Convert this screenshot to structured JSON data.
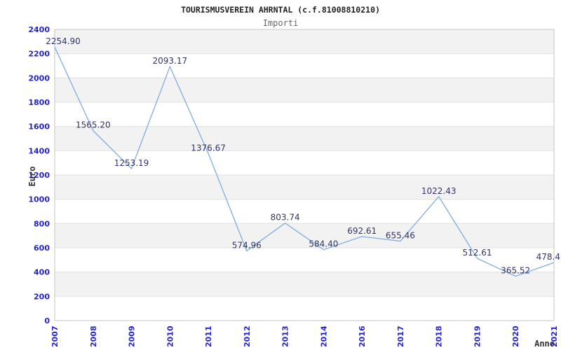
{
  "chart_data": {
    "type": "line",
    "title": "TOURISMUSVEREIN AHRNTAL (c.f.81008810210)",
    "subtitle": "Importi",
    "xlabel": "Anno",
    "ylabel": "Euro",
    "categories": [
      "2007",
      "2008",
      "2009",
      "2010",
      "2011",
      "2012",
      "2013",
      "2014",
      "2016",
      "2017",
      "2018",
      "2019",
      "2020",
      "2021"
    ],
    "values": [
      2254.9,
      1565.2,
      1253.19,
      2093.17,
      1376.67,
      574.96,
      803.74,
      584.4,
      692.61,
      655.46,
      1022.43,
      512.61,
      365.52,
      478.4
    ],
    "point_labels": [
      "2254.90",
      "1565.20",
      "1253.19",
      "2093.17",
      "1376.67",
      "574.96",
      "803.74",
      "584.40",
      "692.61",
      "655.46",
      "1022.43",
      "512.61",
      "365.52",
      "478.4"
    ],
    "ylim": [
      0,
      2400
    ],
    "ytick_step": 200,
    "ytick_labels": [
      "0",
      "200",
      "400",
      "600",
      "800",
      "1000",
      "1200",
      "1400",
      "1600",
      "1800",
      "2000",
      "2200",
      "2400"
    ],
    "legend": "none",
    "grid": "horizontal gridlines every 200 with alternating shaded bands",
    "colors": {
      "line": "#7fade0",
      "tick_label": "#2323cc",
      "point_label": "#333366",
      "band": "#f2f2f2",
      "band_alt": "#ffffff",
      "gridline": "#e0e0e0",
      "border": "#c6c6c6",
      "title": "#222222",
      "subtitle": "#666666",
      "axis_title": "#333333",
      "background": "#ffffff"
    }
  }
}
